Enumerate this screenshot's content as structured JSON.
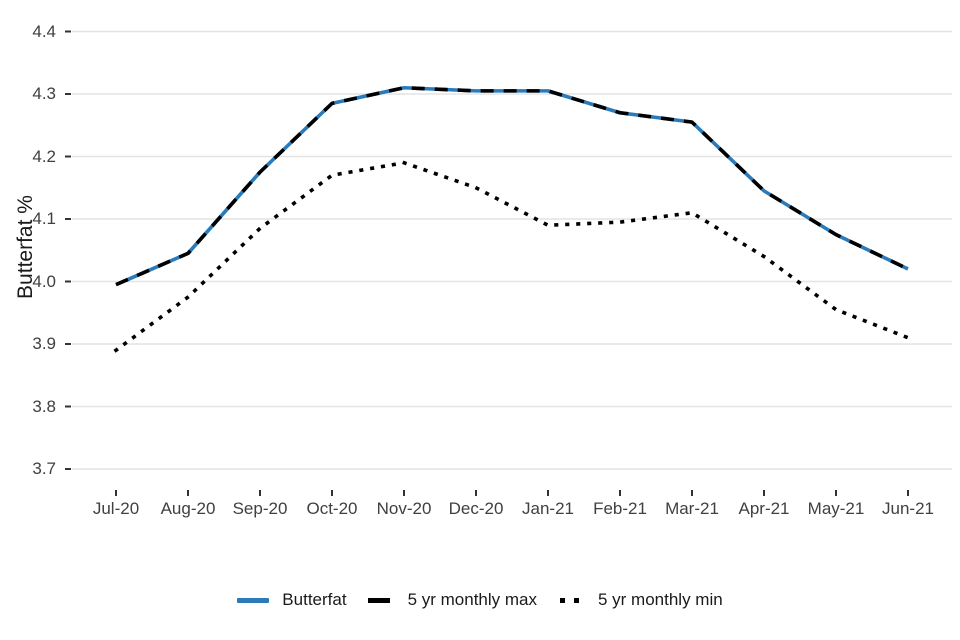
{
  "chart_data": {
    "type": "line",
    "title": "",
    "xlabel": "",
    "ylabel": "Butterfat %",
    "categories": [
      "Jul-20",
      "Aug-20",
      "Sep-20",
      "Oct-20",
      "Nov-20",
      "Dec-20",
      "Jan-21",
      "Feb-21",
      "Mar-21",
      "Apr-21",
      "May-21",
      "Jun-21"
    ],
    "yticks": [
      3.7,
      3.8,
      3.9,
      4.0,
      4.1,
      4.2,
      4.3,
      4.4
    ],
    "ytick_labels": [
      "3.7",
      "3.8",
      "3.9",
      "4.0",
      "4.1",
      "4.2",
      "4.3",
      "4.4"
    ],
    "ylim": [
      3.7,
      4.4
    ],
    "grid": "horizontal-only",
    "legend_position": "bottom-center",
    "series": [
      {
        "name": "Butterfat",
        "style": "solid",
        "color": "#2b7bba",
        "values": [
          3.995,
          4.045,
          4.175,
          4.285,
          4.31,
          4.305,
          4.305,
          4.27,
          4.255,
          4.145,
          4.075,
          4.02
        ]
      },
      {
        "name": "5 yr monthly max",
        "style": "dashed",
        "color": "#000000",
        "values": [
          3.995,
          4.045,
          4.175,
          4.285,
          4.31,
          4.305,
          4.305,
          4.27,
          4.255,
          4.145,
          4.075,
          4.02
        ]
      },
      {
        "name": "5 yr monthly min",
        "style": "dotted",
        "color": "#000000",
        "values": [
          3.89,
          3.975,
          4.085,
          4.17,
          4.19,
          4.15,
          4.09,
          4.095,
          4.11,
          4.04,
          3.955,
          3.91
        ]
      }
    ]
  },
  "colors": {
    "butterfat_blue": "#2b7bba",
    "line_black": "#000000",
    "gridline": "#e4e4e4",
    "tick_mark": "#333333",
    "axis_text": "#404040"
  }
}
